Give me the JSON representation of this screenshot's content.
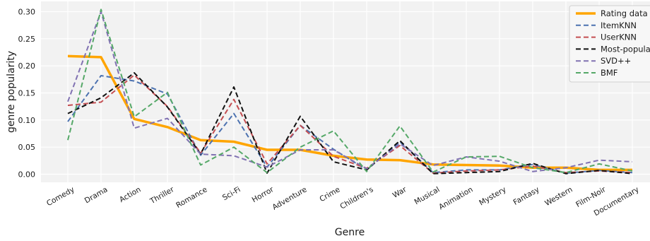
{
  "chart_data": {
    "type": "line",
    "xlabel": "Genre",
    "ylabel": "genre popularity",
    "ylim": [
      -0.015,
      0.31
    ],
    "yticks": [
      0.0,
      0.05,
      0.1,
      0.15,
      0.2,
      0.25,
      0.3
    ],
    "ytick_labels": [
      "0.00",
      "0.05",
      "0.10",
      "0.15",
      "0.20",
      "0.25",
      "0.30"
    ],
    "grid": true,
    "background": "#f2f2f2",
    "legend_position": "top-right",
    "categories": [
      "Comedy",
      "Drama",
      "Action",
      "Thriller",
      "Romance",
      "Sci-Fi",
      "Horror",
      "Adventure",
      "Crime",
      "Children's",
      "War",
      "Musical",
      "Animation",
      "Mystery",
      "Fantasy",
      "Western",
      "Film-Noir",
      "Documentary"
    ],
    "series": [
      {
        "name": "Rating data",
        "color": "#ffa500",
        "dash": "solid",
        "width": 3.5,
        "values": [
          0.218,
          0.216,
          0.102,
          0.087,
          0.063,
          0.06,
          0.045,
          0.045,
          0.034,
          0.027,
          0.026,
          0.018,
          0.017,
          0.016,
          0.012,
          0.012,
          0.008,
          0.008
        ]
      },
      {
        "name": "ItemKNN",
        "color": "#4c72b0",
        "dash": "dashed",
        "width": 2,
        "values": [
          0.097,
          0.182,
          0.172,
          0.148,
          0.035,
          0.112,
          0.013,
          0.09,
          0.046,
          0.008,
          0.06,
          0.003,
          0.008,
          0.008,
          0.018,
          0.002,
          0.007,
          0.003
        ]
      },
      {
        "name": "UserKNN",
        "color": "#c44e52",
        "dash": "dashed",
        "width": 2,
        "values": [
          0.127,
          0.133,
          0.183,
          0.125,
          0.039,
          0.138,
          0.019,
          0.09,
          0.033,
          0.011,
          0.053,
          0.002,
          0.006,
          0.008,
          0.015,
          0.003,
          0.006,
          0.003
        ]
      },
      {
        "name": "Most-popular",
        "color": "#111111",
        "dash": "dashed",
        "width": 2,
        "values": [
          0.112,
          0.141,
          0.187,
          0.124,
          0.037,
          0.161,
          0.002,
          0.107,
          0.023,
          0.008,
          0.062,
          0.001,
          0.003,
          0.005,
          0.02,
          0.001,
          0.007,
          0.001
        ]
      },
      {
        "name": "SVD++",
        "color": "#8172b2",
        "dash": "dashed",
        "width": 2,
        "values": [
          0.134,
          0.3,
          0.085,
          0.103,
          0.037,
          0.034,
          0.013,
          0.045,
          0.045,
          0.01,
          0.056,
          0.016,
          0.032,
          0.024,
          0.005,
          0.012,
          0.026,
          0.023
        ]
      },
      {
        "name": "BMF",
        "color": "#55a868",
        "dash": "dashed",
        "width": 2,
        "values": [
          0.063,
          0.304,
          0.106,
          0.151,
          0.017,
          0.05,
          0.003,
          0.05,
          0.08,
          0.005,
          0.089,
          0.004,
          0.032,
          0.033,
          0.012,
          0.003,
          0.019,
          0.006
        ]
      }
    ]
  }
}
